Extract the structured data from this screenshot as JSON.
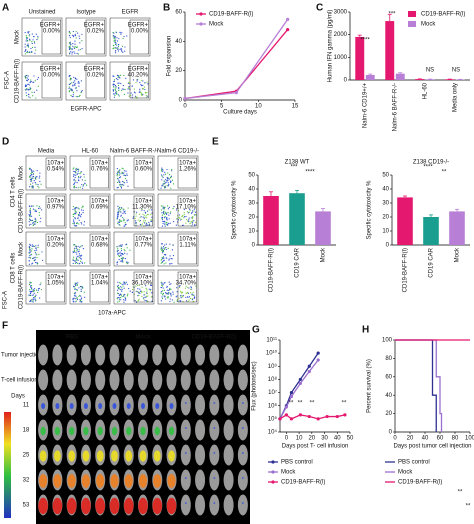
{
  "panel_labels": [
    "B",
    "C",
    "E",
    "G",
    "H"
  ],
  "flow_a": {
    "label": "A",
    "columns": [
      "Unstained",
      "Isotype",
      "EGFR"
    ],
    "rows": [
      "Mock",
      "CD19-BAFF-R(l)"
    ],
    "gate": "EGFR+",
    "values": [
      [
        "0.00%",
        "0.02%",
        "0.00%"
      ],
      [
        "0.00%",
        "0.02%",
        "40.20%"
      ]
    ],
    "y_axis": "FSC-A",
    "x_axis": "EGFR-APC"
  },
  "flow_d": {
    "label": "D",
    "columns": [
      "Media",
      "HL-60",
      "Nalm-6 BAFF-R-/-",
      "Nalm-6 CD19-/-"
    ],
    "groups": [
      "CD4 T cells",
      "CD8 T cells"
    ],
    "rows": [
      "Mock",
      "CD19-BAFF-R(l)",
      "Mock",
      "CD19-BAFF-R(l)"
    ],
    "gate": "107a+",
    "values": [
      [
        "0.54%",
        "0.76%",
        "0.60%",
        "1.26%"
      ],
      [
        "0.97%",
        "0.69%",
        "11.30%",
        "17.10%"
      ],
      [
        "0.20%",
        "0.68%",
        "0.77%",
        "1.11%"
      ],
      [
        "1.05%",
        "1.04%",
        "36.10%",
        "34.70%"
      ]
    ],
    "y_axis": "FSC-A",
    "x_axis": "107a-APC"
  },
  "imaging_f": {
    "label": "F",
    "groups": [
      "PBS",
      "Mock",
      "CD19-BAFF-R(l)"
    ],
    "row_labels": [
      "Tumor injection",
      "T-cell infusion"
    ],
    "days_label": "Days",
    "days": [
      "11",
      "18",
      "25",
      "32",
      "53"
    ]
  },
  "chart_data": [
    {
      "type": "line",
      "ylabel": "Fold expansion",
      "xlabel": "Culture days",
      "xlim": [
        0,
        15
      ],
      "xticks": [
        0,
        5,
        10,
        15
      ],
      "ylim": [
        0,
        60
      ],
      "yticks": [
        0,
        20,
        40,
        60
      ],
      "series": [
        {
          "name": "CD19-BAFF-R(l)",
          "color": "#e5186f",
          "x": [
            0,
            7,
            14
          ],
          "values": [
            1,
            6,
            48
          ]
        },
        {
          "name": "Mock",
          "color": "#b77fd6",
          "x": [
            0,
            7,
            14
          ],
          "values": [
            1,
            5,
            55
          ]
        }
      ]
    },
    {
      "type": "bar",
      "ylabel": "Human IFN gamma (pg/ml)",
      "categories": [
        "Nalm-6 CD19+/+",
        "Nalm-6 BAFF-R-/-",
        "HL-60",
        "Media only"
      ],
      "ylim": [
        0,
        3000
      ],
      "yticks": [
        0,
        1000,
        2000,
        3000
      ],
      "series": [
        {
          "name": "CD19-BAFF-R(l)",
          "color": "#e5186f",
          "values": [
            1900,
            2600,
            40,
            30
          ],
          "errors": [
            80,
            300,
            10,
            10
          ]
        },
        {
          "name": "Mock",
          "color": "#b77fd6",
          "values": [
            220,
            280,
            30,
            20
          ],
          "errors": [
            40,
            40,
            10,
            10
          ]
        }
      ],
      "annotations": [
        "****",
        "***",
        "NS",
        "NS"
      ]
    },
    {
      "type": "bar",
      "title": "Z138 WT",
      "ylabel": "Specific cytotoxicity %",
      "categories": [
        "CD19-BAFF-R(l)",
        "CD19 CAR",
        "Mock"
      ],
      "colors": [
        "#e5186f",
        "#1a9e8f",
        "#b77fd6"
      ],
      "values": [
        35,
        37,
        24
      ],
      "errors": [
        3,
        2,
        2
      ],
      "ylim": [
        0,
        50
      ],
      "yticks": [
        0,
        10,
        20,
        30,
        40,
        50
      ],
      "annotations": [
        "***",
        "****"
      ]
    },
    {
      "type": "bar",
      "title": "Z138 CD19-/-",
      "ylabel": "Specific cytotoxicity %",
      "categories": [
        "CD19-BAFF-R(l)",
        "CD19 CAR",
        "Mock"
      ],
      "colors": [
        "#e5186f",
        "#1a9e8f",
        "#b77fd6"
      ],
      "values": [
        34,
        20,
        24
      ],
      "errors": [
        1,
        1.5,
        1.5
      ],
      "ylim": [
        0,
        50
      ],
      "yticks": [
        0,
        10,
        20,
        30,
        40,
        50
      ],
      "annotations": [
        "****",
        "**"
      ]
    },
    {
      "type": "line",
      "log_y": true,
      "ylabel": "Flux (photons/sec)",
      "xlabel": "Days post T- cell infusion",
      "xlim": [
        -5,
        50
      ],
      "xticks": [
        0,
        10,
        20,
        30,
        40,
        50
      ],
      "ylim": [
        10000,
        100000000000.0
      ],
      "yticks": [
        {
          "value": 10000,
          "label": "10⁴"
        },
        {
          "value": 100000,
          "label": "10⁵"
        },
        {
          "value": 1000000,
          "label": "10⁶"
        },
        {
          "value": 10000000,
          "label": "10⁷"
        },
        {
          "value": 100000000,
          "label": "10⁸"
        },
        {
          "value": 1000000000,
          "label": "10⁹"
        },
        {
          "value": 10000000000.0,
          "label": "10¹⁰"
        },
        {
          "value": 100000000000.0,
          "label": "10¹¹"
        }
      ],
      "series": [
        {
          "name": "PBS control",
          "color": "#2e3192",
          "x": [
            -5,
            0,
            4,
            11,
            18,
            25
          ],
          "values": [
            100000,
            1000000,
            10000000,
            100000000,
            1000000000,
            10000000000.0
          ]
        },
        {
          "name": "Mock",
          "color": "#9b6fcf",
          "x": [
            -5,
            0,
            4,
            11,
            18,
            25
          ],
          "values": [
            100000,
            800000,
            5000000,
            50000000,
            400000000,
            3000000000
          ]
        },
        {
          "name": "CD19-BAFF-R(l)",
          "color": "#e5186f",
          "x": [
            -5,
            0,
            4,
            11,
            18,
            25,
            32,
            40,
            46
          ],
          "values": [
            100000,
            200000,
            100000,
            200000,
            150000,
            100000,
            150000,
            150000,
            200000
          ]
        }
      ],
      "annotations": [
        "**",
        "**",
        "**",
        "**"
      ]
    },
    {
      "type": "line",
      "line_style": "step",
      "ylabel": "Percent survival (%)",
      "xlabel": "Days post tumor cell injection",
      "xlim": [
        0,
        100
      ],
      "xticks": [
        0,
        20,
        40,
        60,
        80,
        100
      ],
      "ylim": [
        0,
        100
      ],
      "yticks": [
        0,
        20,
        40,
        60,
        80,
        100
      ],
      "series": [
        {
          "name": "PBS control",
          "color": "#2e3192",
          "x": [
            0,
            50,
            55
          ],
          "values": [
            100,
            40,
            0
          ]
        },
        {
          "name": "Mock",
          "color": "#9b6fcf",
          "x": [
            0,
            55,
            60,
            62
          ],
          "values": [
            100,
            60,
            20,
            0
          ]
        },
        {
          "name": "CD19-BAFF-R(l)",
          "color": "#e5186f",
          "x": [
            0,
            100
          ],
          "values": [
            100,
            100
          ]
        }
      ],
      "annotations": [
        "**",
        "**"
      ]
    }
  ]
}
